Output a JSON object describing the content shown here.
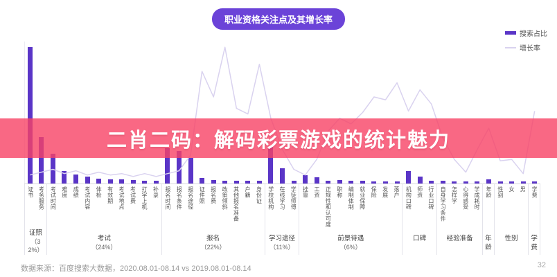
{
  "header": {
    "title": "职业资格关注点及其增长率"
  },
  "legend": {
    "bar_label": "搜索占比",
    "line_label": "增长率"
  },
  "overlay_banner": {
    "text": "二肖二码：解码彩票游戏的统计魅力"
  },
  "footer": {
    "source": "数据来源：百度搜索大数据，2020.08.01-08.14 vs 2019.08.01-08.14",
    "page_number": "32"
  },
  "colors": {
    "bar": "#5A35C7",
    "line": "#D9D2EF",
    "banner": "rgba(247,66,101,0.8)",
    "title_pill": "#6B43D8"
  },
  "chart_data": {
    "type": "bar",
    "title": "职业资格关注点及其增长率",
    "xlabel": "",
    "ylabel": "",
    "legend_position": "top-right",
    "grid": false,
    "categories": [
      "证书",
      "考务服务",
      "考试时间",
      "难度",
      "成绩",
      "考试内容",
      "体检",
      "有效期",
      "考试地点",
      "考试费",
      "打字上机",
      "补录",
      "报名时间",
      "报名条件",
      "报名途径",
      "证件照",
      "报名费",
      "政策倾斜",
      "其他报名准备",
      "户籍",
      "身份证",
      "学校机构",
      "在线学习",
      "学徒师傅",
      "挂靠",
      "工资",
      "正规性和认可度",
      "职称",
      "编制体制",
      "就业保障",
      "保险",
      "发展",
      "落户",
      "机构口碑",
      "师资",
      "行业口碑",
      "自身学习条件",
      "怎样学",
      "心得感受",
      "学成耗时",
      "年龄",
      "性别",
      "女",
      "男",
      "学费"
    ],
    "series": [
      {
        "name": "搜索占比",
        "type": "bar",
        "unit": "relative-index (max=100)",
        "values": [
          100,
          34,
          22,
          9,
          6.5,
          5,
          3.5,
          3,
          3,
          2.5,
          2,
          2,
          26,
          24,
          19,
          4,
          2.5,
          2,
          2,
          2,
          2,
          27,
          11,
          2,
          6,
          4.5,
          2,
          2.5,
          2,
          2,
          1.5,
          1.5,
          1.5,
          9,
          5,
          2,
          2,
          1.5,
          1.5,
          1.5,
          3,
          1.5,
          1.5,
          1.5,
          1.5
        ]
      },
      {
        "name": "增长率",
        "type": "line",
        "unit": "relative-index (max=100)",
        "values": [
          6,
          8,
          10,
          7,
          9,
          6,
          8,
          6,
          7,
          5,
          7,
          5,
          7,
          9,
          20,
          79,
          61,
          96,
          53,
          49,
          84,
          46,
          24,
          10,
          6,
          17,
          37,
          46,
          42,
          50,
          61,
          59,
          71,
          51,
          66,
          56,
          32,
          17,
          8,
          24,
          39,
          16,
          17,
          7,
          51
        ]
      }
    ],
    "groups": [
      {
        "label": "证照",
        "pct": "（32%）",
        "count": 2
      },
      {
        "label": "考试",
        "pct": "（24%）",
        "count": 10
      },
      {
        "label": "报名",
        "pct": "（22%）",
        "count": 9
      },
      {
        "label": "学习途径",
        "pct": "（11%）",
        "count": 3
      },
      {
        "label": "前景待遇",
        "pct": "（6%）",
        "count": 9
      },
      {
        "label": "口碑",
        "pct": "",
        "count": 3
      },
      {
        "label": "经验准备",
        "pct": "",
        "count": 4
      },
      {
        "label": "年龄",
        "pct": "",
        "count": 1
      },
      {
        "label": "性别",
        "pct": "",
        "count": 3
      },
      {
        "label": "学费",
        "pct": "",
        "count": 1
      }
    ]
  }
}
